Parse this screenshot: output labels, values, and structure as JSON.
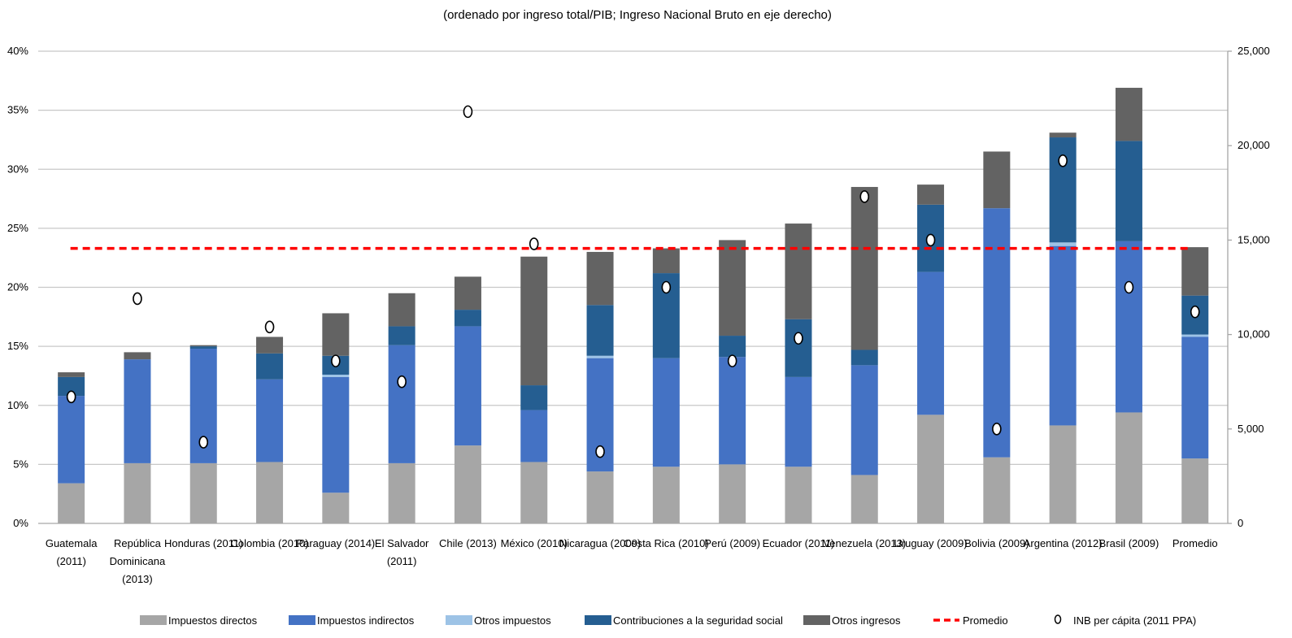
{
  "chart_data": {
    "type": "bar",
    "stacked": true,
    "title": "(ordenado por ingreso total/PIB;  Ingreso Nacional Bruto en eje derecho)",
    "categories": [
      [
        "Guatemala",
        "(2011)"
      ],
      [
        "República",
        "Dominicana",
        "(2013)"
      ],
      [
        "Honduras (2011)"
      ],
      [
        "Colombia (2010)"
      ],
      [
        "Paraguay (2014)"
      ],
      [
        "El Salvador",
        "(2011)"
      ],
      [
        "Chile (2013)"
      ],
      [
        "México (2010)"
      ],
      [
        "Nicaragua (2009)"
      ],
      [
        "Costa Rica (2010)"
      ],
      [
        "Perú (2009)"
      ],
      [
        "Ecuador (2011)"
      ],
      [
        "Venezuela (2013)"
      ],
      [
        "Uruguay (2009)"
      ],
      [
        "Bolivia (2009)"
      ],
      [
        "Argentina (2012)"
      ],
      [
        "Brasil (2009)"
      ],
      [
        "Promedio"
      ]
    ],
    "y_left": {
      "min": 0,
      "max": 40,
      "ticks": [
        "0%",
        "5%",
        "10%",
        "15%",
        "20%",
        "25%",
        "30%",
        "35%",
        "40%"
      ]
    },
    "y_right": {
      "min": 0,
      "max": 25000,
      "ticks": [
        "0",
        "5,000",
        "10,000",
        "15,000",
        "20,000",
        "25,000"
      ]
    },
    "grid": true,
    "legend_position": "bottom",
    "series": [
      {
        "name": "Impuestos directos",
        "color": "#a6a6a6",
        "values": [
          3.4,
          5.1,
          5.1,
          5.2,
          2.6,
          5.1,
          6.6,
          5.2,
          4.4,
          4.8,
          5.0,
          4.8,
          4.1,
          9.2,
          5.6,
          8.3,
          9.4,
          5.5
        ]
      },
      {
        "name": "Impuestos indirectos",
        "color": "#4472c4",
        "values": [
          7.4,
          8.8,
          9.7,
          7.0,
          9.8,
          10.0,
          10.1,
          4.4,
          9.6,
          9.2,
          9.1,
          7.6,
          9.3,
          12.1,
          21.1,
          15.2,
          14.5,
          10.3
        ]
      },
      {
        "name": "Otros impuestos",
        "color": "#9dc3e6",
        "values": [
          0.0,
          0.0,
          0.0,
          0.0,
          0.2,
          0.0,
          0.0,
          0.0,
          0.2,
          0.0,
          0.0,
          0.0,
          0.0,
          0.0,
          0.0,
          0.3,
          0.0,
          0.2
        ]
      },
      {
        "name": "Contribuciones  a la seguridad social",
        "color": "#255e91",
        "values": [
          1.6,
          0.0,
          0.2,
          2.2,
          1.6,
          1.6,
          1.4,
          2.1,
          4.3,
          7.2,
          1.8,
          4.9,
          1.3,
          5.7,
          0.0,
          8.9,
          8.5,
          3.3
        ]
      },
      {
        "name": "Otros ingresos",
        "color": "#636363",
        "values": [
          0.4,
          0.6,
          0.1,
          1.4,
          3.6,
          2.8,
          2.8,
          10.9,
          4.5,
          2.1,
          8.1,
          8.1,
          13.8,
          1.7,
          4.8,
          0.4,
          4.5,
          4.1
        ]
      }
    ],
    "line_series": {
      "name": "Promedio",
      "color": "#ff0000",
      "value": 23.3,
      "style": "dashed"
    },
    "scatter_series": {
      "name": "INB per cápita (2011 PPA)",
      "axis": "right",
      "values": [
        6700,
        11900,
        4300,
        10400,
        8600,
        7500,
        21800,
        14800,
        3800,
        12500,
        8600,
        9800,
        17300,
        15000,
        5000,
        19200,
        12500,
        11200
      ]
    }
  }
}
